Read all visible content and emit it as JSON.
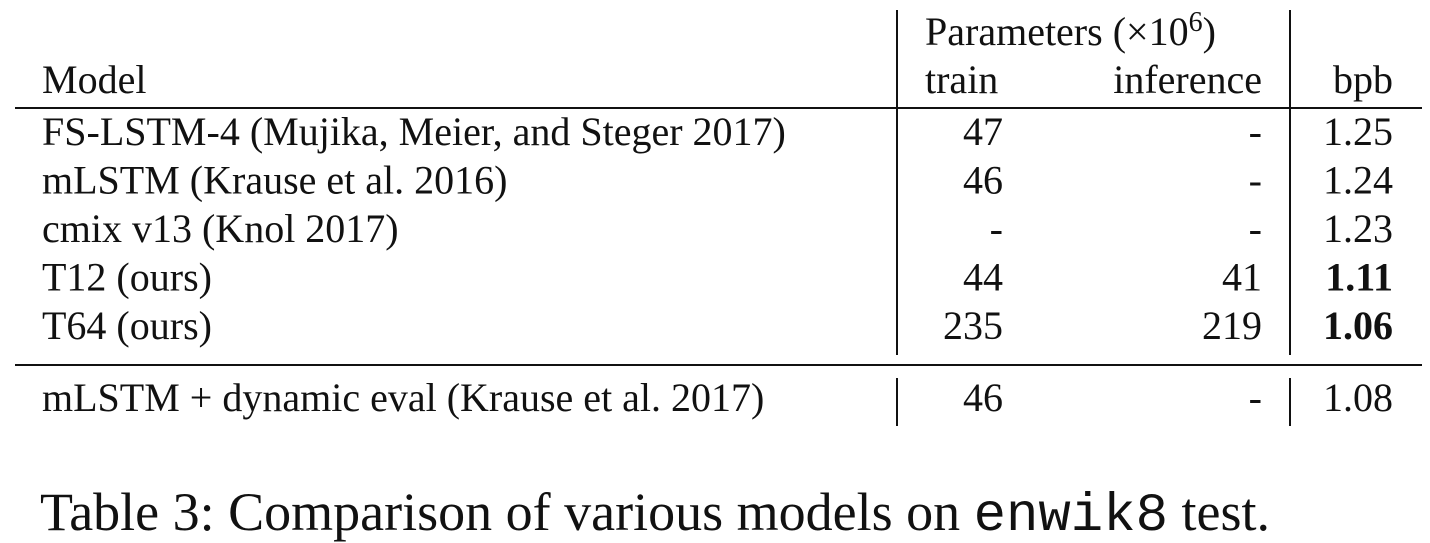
{
  "header": {
    "params_prefix": "Parameters (×10",
    "params_exp": "6",
    "params_suffix": ")",
    "model": "Model",
    "train": "train",
    "inference": "inference",
    "bpb": "bpb"
  },
  "table": {
    "rows": [
      {
        "model": "FS-LSTM-4 (Mujika, Meier, and Steger 2017)",
        "train": "47",
        "inference": "-",
        "bpb": "1.25",
        "bold": false
      },
      {
        "model": "mLSTM (Krause et al. 2016)",
        "train": "46",
        "inference": "-",
        "bpb": "1.24",
        "bold": false
      },
      {
        "model": "cmix v13 (Knol 2017)",
        "train": "-",
        "inference": "-",
        "bpb": "1.23",
        "bold": false
      },
      {
        "model": "T12 (ours)",
        "train": "44",
        "inference": "41",
        "bpb": "1.11",
        "bold": true
      },
      {
        "model": "T64 (ours)",
        "train": "235",
        "inference": "219",
        "bpb": "1.06",
        "bold": true
      }
    ],
    "extra_rows": [
      {
        "model": "mLSTM + dynamic eval (Krause et al. 2017)",
        "train": "46",
        "inference": "-",
        "bpb": "1.08",
        "bold": false
      }
    ]
  },
  "caption": {
    "prefix": "Table 3: Comparison of various models on ",
    "code": "enwik8",
    "suffix": " test."
  }
}
